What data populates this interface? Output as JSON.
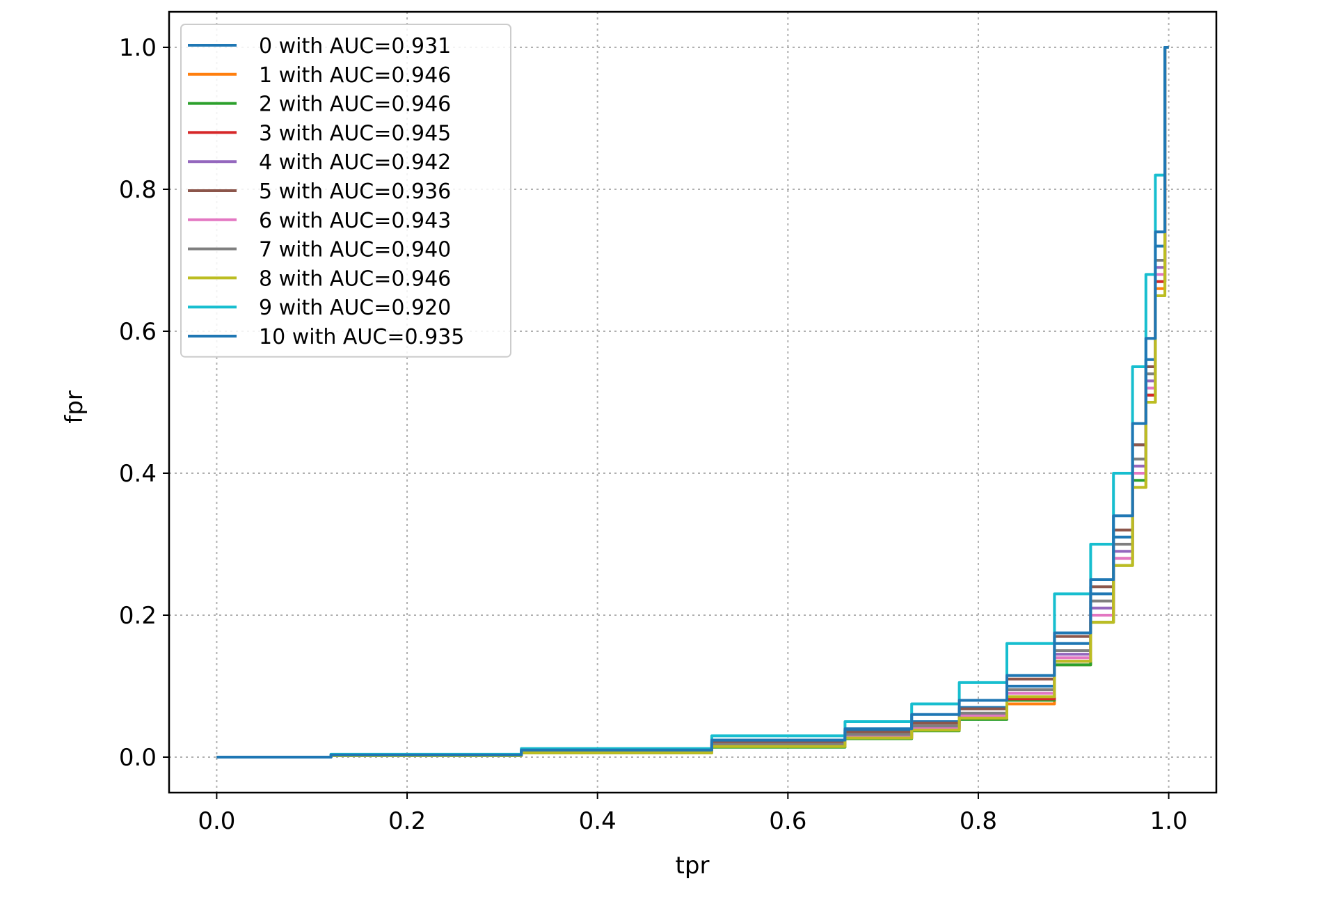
{
  "chart_data": {
    "type": "line",
    "title": "",
    "xlabel": "tpr",
    "ylabel": "fpr",
    "xlim": [
      -0.05,
      1.05
    ],
    "ylim": [
      -0.05,
      1.05
    ],
    "xticks": [
      "0.0",
      "0.2",
      "0.4",
      "0.6",
      "0.8",
      "1.0"
    ],
    "yticks": [
      "0.0",
      "0.2",
      "0.4",
      "0.6",
      "0.8",
      "1.0"
    ],
    "grid": true,
    "legend_position": "top-left",
    "series": [
      {
        "name": "0 with AUC=0.931",
        "color": "#1f77b4",
        "x": [
          0,
          0.2,
          0.4,
          0.6,
          0.7,
          0.75,
          0.8,
          0.85,
          0.9,
          0.93,
          0.95,
          0.97,
          0.98,
          0.99,
          1.0
        ],
        "y": [
          0,
          0.003,
          0.009,
          0.022,
          0.038,
          0.05,
          0.07,
          0.1,
          0.16,
          0.23,
          0.31,
          0.44,
          0.56,
          0.72,
          1.0
        ]
      },
      {
        "name": "1 with AUC=0.946",
        "color": "#ff7f0e",
        "x": [
          0,
          0.2,
          0.4,
          0.6,
          0.7,
          0.75,
          0.8,
          0.85,
          0.9,
          0.93,
          0.95,
          0.97,
          0.98,
          0.99,
          1.0
        ],
        "y": [
          0,
          0.002,
          0.006,
          0.015,
          0.027,
          0.038,
          0.055,
          0.075,
          0.13,
          0.19,
          0.27,
          0.38,
          0.5,
          0.66,
          1.0
        ]
      },
      {
        "name": "2 with AUC=0.946",
        "color": "#2ca02c",
        "x": [
          0,
          0.2,
          0.4,
          0.6,
          0.7,
          0.75,
          0.8,
          0.85,
          0.9,
          0.93,
          0.95,
          0.97,
          0.98,
          0.99,
          1.0
        ],
        "y": [
          0,
          0.002,
          0.006,
          0.014,
          0.026,
          0.037,
          0.053,
          0.08,
          0.13,
          0.19,
          0.27,
          0.39,
          0.51,
          0.67,
          1.0
        ]
      },
      {
        "name": "3 with AUC=0.945",
        "color": "#d62728",
        "x": [
          0,
          0.2,
          0.4,
          0.6,
          0.7,
          0.75,
          0.8,
          0.85,
          0.9,
          0.93,
          0.95,
          0.97,
          0.98,
          0.99,
          1.0
        ],
        "y": [
          0,
          0.002,
          0.007,
          0.018,
          0.03,
          0.04,
          0.055,
          0.082,
          0.135,
          0.2,
          0.28,
          0.4,
          0.51,
          0.67,
          1.0
        ]
      },
      {
        "name": "4 with AUC=0.942",
        "color": "#9467bd",
        "x": [
          0,
          0.2,
          0.4,
          0.6,
          0.7,
          0.75,
          0.8,
          0.85,
          0.9,
          0.93,
          0.95,
          0.97,
          0.98,
          0.99,
          1.0
        ],
        "y": [
          0,
          0.002,
          0.007,
          0.017,
          0.03,
          0.042,
          0.06,
          0.09,
          0.145,
          0.21,
          0.29,
          0.41,
          0.53,
          0.69,
          1.0
        ]
      },
      {
        "name": "5 with AUC=0.936",
        "color": "#8c564b",
        "x": [
          0,
          0.2,
          0.4,
          0.6,
          0.7,
          0.75,
          0.8,
          0.85,
          0.9,
          0.93,
          0.95,
          0.97,
          0.98,
          0.99,
          1.0
        ],
        "y": [
          0,
          0.003,
          0.008,
          0.02,
          0.035,
          0.048,
          0.068,
          0.11,
          0.17,
          0.24,
          0.32,
          0.44,
          0.55,
          0.7,
          1.0
        ]
      },
      {
        "name": "6 with AUC=0.943",
        "color": "#e377c2",
        "x": [
          0,
          0.2,
          0.4,
          0.6,
          0.7,
          0.75,
          0.8,
          0.85,
          0.9,
          0.93,
          0.95,
          0.97,
          0.98,
          0.99,
          1.0
        ],
        "y": [
          0,
          0.002,
          0.007,
          0.016,
          0.028,
          0.04,
          0.058,
          0.09,
          0.14,
          0.2,
          0.28,
          0.4,
          0.52,
          0.68,
          1.0
        ]
      },
      {
        "name": "7 with AUC=0.940",
        "color": "#7f7f7f",
        "x": [
          0,
          0.2,
          0.4,
          0.6,
          0.7,
          0.75,
          0.8,
          0.85,
          0.9,
          0.93,
          0.95,
          0.97,
          0.98,
          0.99,
          1.0
        ],
        "y": [
          0,
          0.002,
          0.007,
          0.018,
          0.032,
          0.044,
          0.062,
          0.095,
          0.15,
          0.22,
          0.3,
          0.42,
          0.54,
          0.7,
          1.0
        ]
      },
      {
        "name": "8 with AUC=0.946",
        "color": "#bcbd22",
        "x": [
          0,
          0.2,
          0.4,
          0.6,
          0.7,
          0.75,
          0.8,
          0.85,
          0.9,
          0.93,
          0.95,
          0.97,
          0.98,
          0.99,
          1.0
        ],
        "y": [
          0,
          0.002,
          0.006,
          0.015,
          0.027,
          0.038,
          0.055,
          0.085,
          0.135,
          0.19,
          0.27,
          0.38,
          0.5,
          0.65,
          1.0
        ]
      },
      {
        "name": "9 with AUC=0.920",
        "color": "#17becf",
        "x": [
          0,
          0.2,
          0.4,
          0.6,
          0.7,
          0.75,
          0.8,
          0.85,
          0.9,
          0.93,
          0.95,
          0.97,
          0.98,
          0.99,
          1.0
        ],
        "y": [
          0,
          0.004,
          0.012,
          0.03,
          0.05,
          0.075,
          0.105,
          0.16,
          0.23,
          0.3,
          0.4,
          0.55,
          0.68,
          0.82,
          1.0
        ]
      },
      {
        "name": "10 with AUC=0.935",
        "color": "#1f77b4",
        "x": [
          0,
          0.2,
          0.4,
          0.6,
          0.7,
          0.75,
          0.8,
          0.85,
          0.9,
          0.93,
          0.95,
          0.97,
          0.98,
          0.99,
          1.0
        ],
        "y": [
          0,
          0.003,
          0.01,
          0.024,
          0.04,
          0.06,
          0.08,
          0.115,
          0.175,
          0.25,
          0.34,
          0.47,
          0.59,
          0.74,
          1.0
        ]
      }
    ]
  }
}
